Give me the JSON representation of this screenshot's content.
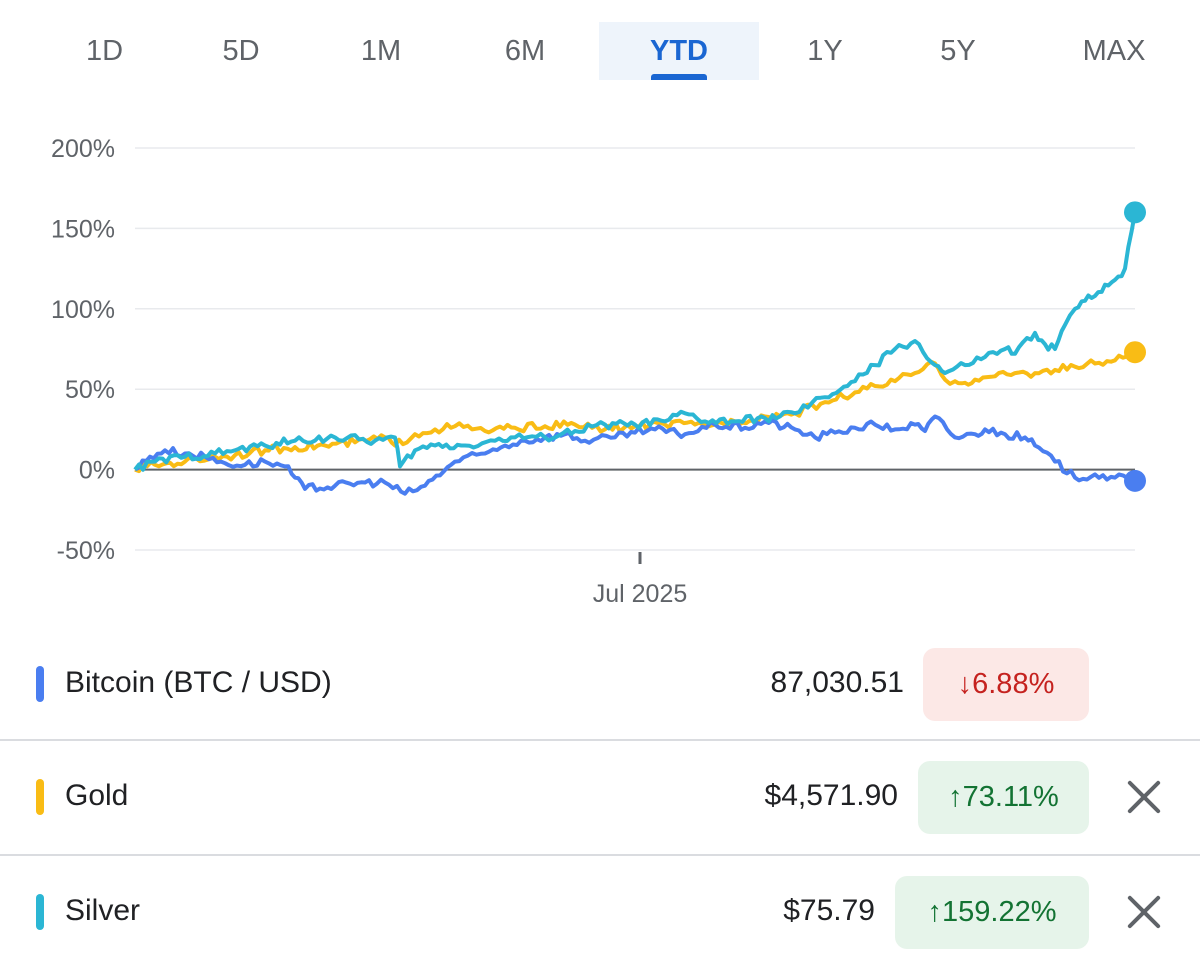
{
  "tabs": [
    {
      "label": "1D",
      "active": false
    },
    {
      "label": "5D",
      "active": false
    },
    {
      "label": "1M",
      "active": false
    },
    {
      "label": "6M",
      "active": false
    },
    {
      "label": "YTD",
      "active": true
    },
    {
      "label": "1Y",
      "active": false
    },
    {
      "label": "5Y",
      "active": false
    },
    {
      "label": "MAX",
      "active": false
    }
  ],
  "chart_data": {
    "type": "line",
    "title": "",
    "xlabel": "",
    "ylabel": "",
    "ylim": [
      -50,
      200
    ],
    "y_ticks": [
      {
        "value": 200,
        "label": "200%"
      },
      {
        "value": 150,
        "label": "150%"
      },
      {
        "value": 100,
        "label": "100%"
      },
      {
        "value": 50,
        "label": "50%"
      },
      {
        "value": 0,
        "label": "0%"
      },
      {
        "value": -50,
        "label": "-50%"
      }
    ],
    "x_tick_label": "Jul 2025",
    "grid": true,
    "series": [
      {
        "key": "btc",
        "color": "#4a7ef0",
        "x": [
          0,
          0.015,
          0.03,
          0.05,
          0.07,
          0.09,
          0.11,
          0.13,
          0.15,
          0.16,
          0.17,
          0.2,
          0.23,
          0.25,
          0.27,
          0.29,
          0.32,
          0.35,
          0.37,
          0.39,
          0.41,
          0.43,
          0.45,
          0.48,
          0.5,
          0.52,
          0.55,
          0.58,
          0.61,
          0.63,
          0.66,
          0.68,
          0.7,
          0.72,
          0.74,
          0.76,
          0.78,
          0.79,
          0.8,
          0.82,
          0.84,
          0.85,
          0.87,
          0.89,
          0.9,
          0.92,
          0.94,
          0.96,
          0.98,
          1.0
        ],
        "y": [
          0,
          8,
          12,
          10,
          8,
          4,
          3,
          5,
          2,
          -5,
          -12,
          -10,
          -8,
          -8,
          -15,
          -10,
          5,
          10,
          15,
          18,
          20,
          22,
          18,
          20,
          23,
          25,
          22,
          28,
          26,
          30,
          25,
          20,
          23,
          26,
          28,
          25,
          28,
          24,
          33,
          20,
          22,
          25,
          22,
          20,
          15,
          5,
          -5,
          -3,
          -5,
          -7
        ]
      },
      {
        "key": "gold",
        "color": "#f9bc15",
        "x": [
          0,
          0.02,
          0.05,
          0.08,
          0.1,
          0.13,
          0.16,
          0.19,
          0.22,
          0.25,
          0.26,
          0.28,
          0.3,
          0.32,
          0.35,
          0.38,
          0.41,
          0.44,
          0.47,
          0.5,
          0.53,
          0.56,
          0.58,
          0.6,
          0.63,
          0.66,
          0.69,
          0.72,
          0.74,
          0.76,
          0.78,
          0.8,
          0.81,
          0.82,
          0.83,
          0.84,
          0.86,
          0.88,
          0.9,
          0.92,
          0.94,
          0.96,
          0.98,
          1.0
        ],
        "y": [
          0,
          3,
          5,
          8,
          9,
          12,
          14,
          15,
          17,
          20,
          15,
          22,
          25,
          27,
          24,
          26,
          27,
          28,
          25,
          27,
          28,
          28,
          28,
          30,
          33,
          35,
          42,
          48,
          52,
          55,
          60,
          66,
          56,
          55,
          54,
          56,
          58,
          60,
          60,
          62,
          64,
          66,
          68,
          73
        ]
      },
      {
        "key": "silver",
        "color": "#2bb6d4",
        "x": [
          0,
          0.02,
          0.05,
          0.08,
          0.1,
          0.13,
          0.16,
          0.2,
          0.24,
          0.26,
          0.265,
          0.28,
          0.3,
          0.33,
          0.36,
          0.38,
          0.41,
          0.44,
          0.47,
          0.5,
          0.53,
          0.55,
          0.57,
          0.6,
          0.63,
          0.66,
          0.69,
          0.72,
          0.74,
          0.76,
          0.78,
          0.8,
          0.81,
          0.83,
          0.85,
          0.87,
          0.88,
          0.9,
          0.91,
          0.92,
          0.93,
          0.94,
          0.95,
          0.96,
          0.97,
          0.98,
          0.99,
          1.0
        ],
        "y": [
          0,
          5,
          8,
          10,
          12,
          15,
          18,
          20,
          18,
          20,
          2,
          12,
          15,
          15,
          18,
          20,
          20,
          24,
          28,
          28,
          30,
          35,
          30,
          30,
          32,
          35,
          45,
          55,
          65,
          75,
          80,
          65,
          60,
          65,
          70,
          75,
          72,
          85,
          78,
          75,
          90,
          100,
          105,
          108,
          115,
          118,
          125,
          160
        ]
      }
    ],
    "end_labels": [
      {
        "key": "btc",
        "name": "Bitcoin (BTC / USD)",
        "price": "87,030.51",
        "change": "6.88%",
        "direction": "down",
        "removable": false
      },
      {
        "key": "gold",
        "name": "Gold",
        "price": "$4,571.90",
        "change": "73.11%",
        "direction": "up",
        "removable": true
      },
      {
        "key": "silver",
        "name": "Silver",
        "price": "$75.79",
        "change": "159.22%",
        "direction": "up",
        "removable": true
      }
    ]
  },
  "colors": {
    "btc": "#4a7ef0",
    "gold": "#f9bc15",
    "silver": "#2bb6d4",
    "accent": "#1a66d2",
    "down": "#c5221f",
    "up": "#137333"
  },
  "icons": {
    "down_arrow": "↓",
    "up_arrow": "↑",
    "close": "close-icon"
  }
}
